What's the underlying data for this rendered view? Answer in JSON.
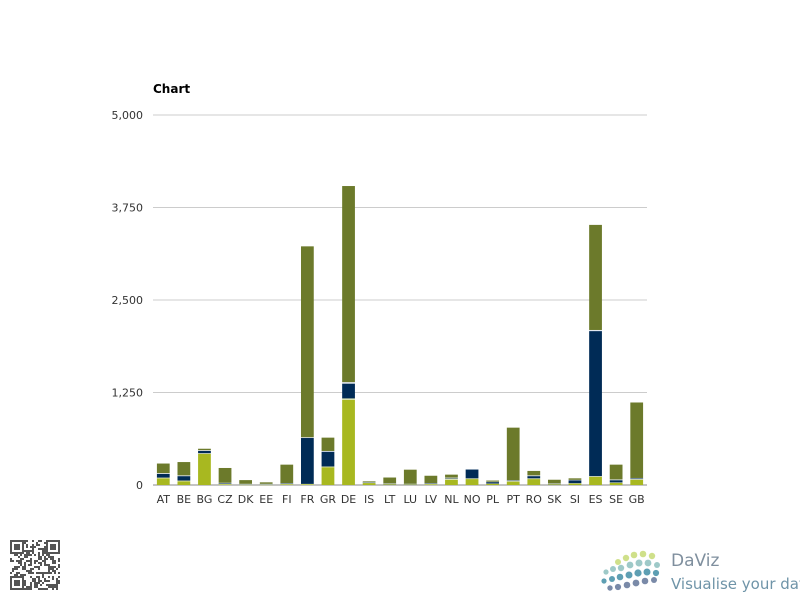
{
  "chart_data": {
    "type": "bar",
    "stacked": true,
    "title": "Chart",
    "xlabel": "",
    "ylabel": "",
    "ylim": [
      0,
      5000
    ],
    "yticks": [
      "0",
      "1,250",
      "2,500",
      "3,750",
      "5,000"
    ],
    "grid": true,
    "categories": [
      "AT",
      "BE",
      "BG",
      "CZ",
      "DK",
      "EE",
      "FI",
      "FR",
      "GR",
      "DE",
      "IS",
      "LT",
      "LU",
      "LV",
      "NL",
      "NO",
      "PL",
      "PT",
      "RO",
      "SK",
      "SI",
      "ES",
      "SE",
      "GB"
    ],
    "series": [
      {
        "color": "#a8b820",
        "values": [
          90,
          50,
          420,
          10,
          5,
          5,
          10,
          10,
          240,
          1150,
          30,
          10,
          10,
          10,
          70,
          80,
          15,
          45,
          80,
          10,
          20,
          110,
          30,
          70
        ]
      },
      {
        "color": "#d8dfae",
        "values": [
          10,
          10,
          10,
          5,
          3,
          3,
          5,
          5,
          10,
          20,
          2,
          3,
          2,
          5,
          20,
          10,
          5,
          10,
          10,
          3,
          5,
          10,
          5,
          10
        ]
      },
      {
        "color": "#002b56",
        "values": [
          50,
          60,
          30,
          10,
          5,
          5,
          5,
          620,
          200,
          200,
          5,
          5,
          3,
          5,
          5,
          120,
          20,
          5,
          30,
          5,
          40,
          1960,
          30,
          10
        ]
      },
      {
        "color": "#e2e8f0",
        "values": [
          10,
          10,
          10,
          5,
          3,
          3,
          5,
          10,
          10,
          20,
          2,
          3,
          2,
          5,
          5,
          5,
          5,
          5,
          10,
          3,
          5,
          15,
          10,
          5
        ]
      },
      {
        "color": "#6c7a2b",
        "values": [
          130,
          180,
          20,
          200,
          50,
          20,
          250,
          2580,
          180,
          2650,
          10,
          80,
          190,
          100,
          40,
          0,
          15,
          710,
          60,
          50,
          20,
          1420,
          200,
          1020
        ]
      }
    ]
  },
  "branding": {
    "logo_name": "DaViz",
    "tagline": "Visualise your data"
  }
}
